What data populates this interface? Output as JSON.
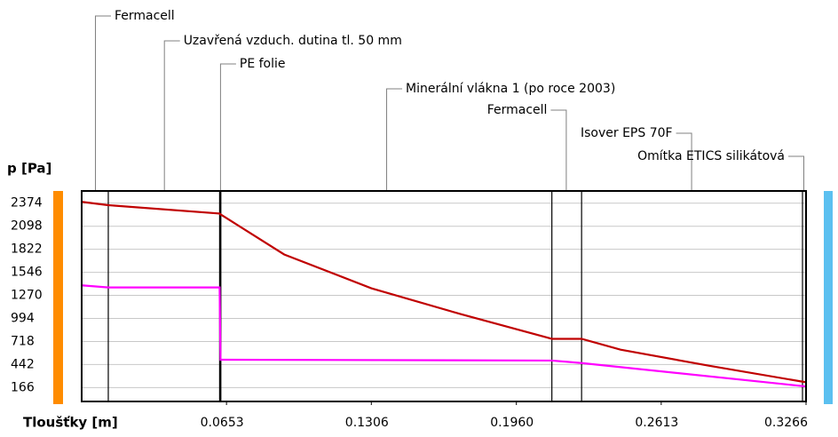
{
  "chart_data": {
    "type": "line",
    "ylabel": "p [Pa]",
    "xlabel": "Tloušťky [m]",
    "xlim": [
      0,
      0.3266
    ],
    "ylim": [
      0,
      2520
    ],
    "xticks": [
      0.0653,
      0.1306,
      {
        "value": 0.196,
        "label": "0.1960"
      },
      0.2613,
      0.3266
    ],
    "yticks": [
      166,
      442,
      718,
      994,
      1270,
      1546,
      1822,
      2098,
      2374
    ],
    "grid": true,
    "layers": [
      {
        "name": "Fermacell",
        "start": 0,
        "end": 0.012,
        "label_side": "left"
      },
      {
        "name": "Uzavřená vzduch. dutina tl. 50 mm",
        "start": 0.012,
        "end": 0.0622,
        "label_side": "left"
      },
      {
        "name": "PE folie",
        "start": 0.0622,
        "end": 0.0626,
        "label_side": "left"
      },
      {
        "name": "Minerální vlákna 1 (po roce 2003)",
        "start": 0.0626,
        "end": 0.212,
        "label_side": "left"
      },
      {
        "name": "Fermacell",
        "start": 0.212,
        "end": 0.2254,
        "label_side": "right"
      },
      {
        "name": "Isover EPS 70F",
        "start": 0.2254,
        "end": 0.325,
        "label_side": "right"
      },
      {
        "name": "Omítka ETICS silikátová",
        "start": 0.325,
        "end": 0.3266,
        "label_side": "right"
      }
    ],
    "series": [
      {
        "color": "#c00000",
        "x": [
          0,
          0.012,
          0.0622,
          0.0626,
          0.0913,
          0.1306,
          0.171,
          0.212,
          0.2254,
          0.243,
          0.283,
          0.3266
        ],
        "values": [
          2390,
          2350,
          2250,
          2240,
          1760,
          1355,
          1045,
          750,
          750,
          620,
          427,
          230
        ]
      },
      {
        "color": "#ff00ff",
        "x": [
          0,
          0.012,
          0.0622,
          0.0626,
          0.212,
          0.2254,
          0.3266
        ],
        "values": [
          1390,
          1365,
          1365,
          500,
          490,
          460,
          180
        ]
      }
    ]
  }
}
